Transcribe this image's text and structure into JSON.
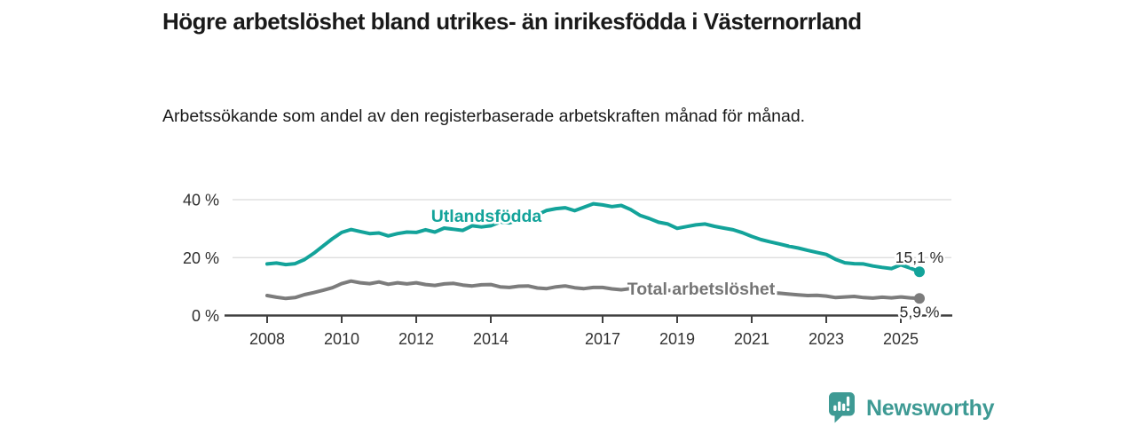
{
  "header": {
    "title": "Högre arbetslöshet bland utrikes- än inrikesfödda i Västernorrland",
    "subtitle": "Arbetssökande som andel av den registerbaserade arbetskraften månad för månad."
  },
  "chart_data": {
    "type": "line",
    "title": "Högre arbetslöshet bland utrikes- än inrikesfödda i Västernorrland",
    "subtitle": "Arbetssökande som andel av den registerbaserade arbetskraften månad för månad.",
    "x_start_year": 2008.0,
    "x_step_years": 0.25,
    "x_last_year": 2025.5,
    "ylim": [
      0,
      44
    ],
    "grid": "horizontal",
    "legend_position": "inline-labels",
    "x_ticks": [
      {
        "year": 2008,
        "label": "2008"
      },
      {
        "year": 2010,
        "label": "2010"
      },
      {
        "year": 2012,
        "label": "2012"
      },
      {
        "year": 2014,
        "label": "2014"
      },
      {
        "year": 2017,
        "label": "2017"
      },
      {
        "year": 2019,
        "label": "2019"
      },
      {
        "year": 2021,
        "label": "2021"
      },
      {
        "year": 2023,
        "label": "2023"
      },
      {
        "year": 2025,
        "label": "2025"
      }
    ],
    "y_ticks": [
      {
        "value": 0,
        "label": "0 %"
      },
      {
        "value": 20,
        "label": "20 %"
      },
      {
        "value": 40,
        "label": "40 %"
      }
    ],
    "series": [
      {
        "name": "Utlandsfödda",
        "color": "#13a39a",
        "end_label": "15,1 %",
        "end_value": 15.1,
        "values": [
          17.8,
          18.1,
          17.6,
          17.9,
          19.3,
          21.5,
          24.0,
          26.5,
          28.7,
          29.7,
          29.0,
          28.3,
          28.5,
          27.5,
          28.3,
          28.8,
          28.7,
          29.6,
          28.8,
          30.2,
          29.8,
          29.4,
          31.0,
          30.6,
          31.0,
          32.3,
          32.0,
          33.0,
          33.8,
          34.8,
          36.3,
          36.9,
          37.2,
          36.2,
          37.4,
          38.6,
          38.2,
          37.6,
          38.0,
          36.6,
          34.6,
          33.5,
          32.2,
          31.6,
          30.1,
          30.7,
          31.3,
          31.6,
          30.8,
          30.2,
          29.6,
          28.6,
          27.3,
          26.2,
          25.4,
          24.7,
          23.9,
          23.3,
          22.5,
          21.8,
          21.1,
          19.4,
          18.2,
          17.9,
          17.8,
          17.1,
          16.6,
          16.2,
          17.5,
          16.4,
          15.1
        ]
      },
      {
        "name": "Total arbetslöshet",
        "color": "#7c7c7c",
        "end_label": "5,9 %",
        "end_value": 5.9,
        "values": [
          6.9,
          6.3,
          5.9,
          6.2,
          7.2,
          7.9,
          8.7,
          9.6,
          11.0,
          11.9,
          11.3,
          11.0,
          11.6,
          10.8,
          11.3,
          10.9,
          11.3,
          10.7,
          10.4,
          10.9,
          11.1,
          10.5,
          10.2,
          10.6,
          10.7,
          9.9,
          9.7,
          10.1,
          10.2,
          9.5,
          9.3,
          9.9,
          10.2,
          9.6,
          9.3,
          9.7,
          9.7,
          9.2,
          8.9,
          9.3,
          9.1,
          8.6,
          8.4,
          8.7,
          8.5,
          8.2,
          8.4,
          8.7,
          9.4,
          9.7,
          9.3,
          9.0,
          8.6,
          8.2,
          7.9,
          7.7,
          7.4,
          7.1,
          6.9,
          7.0,
          6.7,
          6.2,
          6.4,
          6.6,
          6.2,
          6.0,
          6.3,
          6.1,
          6.4,
          6.1,
          5.9
        ]
      }
    ]
  },
  "footer": {
    "brand": "Newsworthy",
    "brand_color": "#3e9a94",
    "logo_icon": "bar-chart-speech-bubble-icon"
  }
}
